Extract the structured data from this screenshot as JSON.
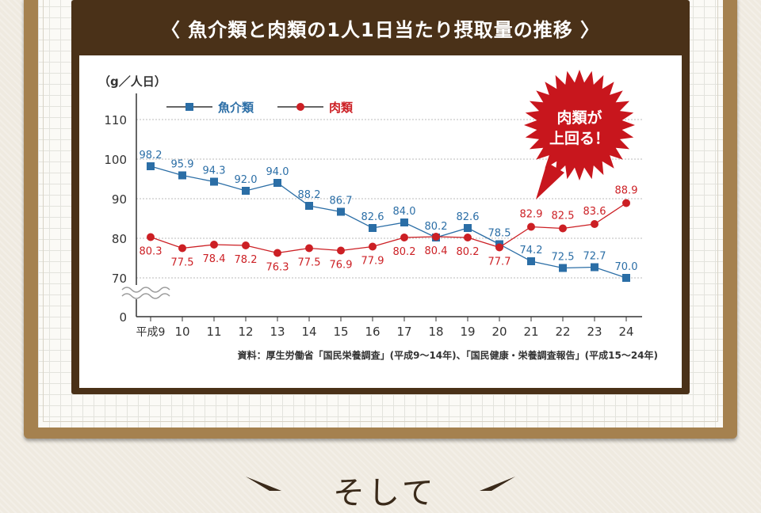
{
  "title": "〈 魚介類と肉類の1人1日当たり摂取量の推移 〉",
  "unit_label": "（g／人日）",
  "callout": {
    "line1": "肉類が",
    "line2": "上回る！"
  },
  "source": "資料：厚生労働省「国民栄養調査」(平成9～14年)、「国民健康・栄養調査報告」(平成15～24年)",
  "bottom_text": "そして",
  "colors": {
    "fish": "#2b6ea6",
    "meat": "#cc1f24",
    "panel": "#4a3118",
    "board": "#a5814f",
    "burst": "#c8161d"
  },
  "chart_data": {
    "type": "line",
    "categories": [
      "平成9",
      "10",
      "11",
      "12",
      "13",
      "14",
      "15",
      "16",
      "17",
      "18",
      "19",
      "20",
      "21",
      "22",
      "23",
      "24"
    ],
    "series": [
      {
        "name": "魚介類",
        "marker": "square",
        "values": [
          98.2,
          95.9,
          94.3,
          92.0,
          94.0,
          88.2,
          86.7,
          82.6,
          84.0,
          80.2,
          82.6,
          78.5,
          74.2,
          72.5,
          72.7,
          70.0
        ],
        "labels": [
          "98.2",
          "95.9",
          "94.3",
          "92.0",
          "94.0",
          "88.2",
          "86.7",
          "82.6",
          "84.0",
          "80.2",
          "82.6",
          "78.5",
          "74.2",
          "72.5",
          "72.7",
          "70.0"
        ]
      },
      {
        "name": "肉類",
        "marker": "circle",
        "values": [
          80.3,
          77.5,
          78.4,
          78.2,
          76.3,
          77.5,
          76.9,
          77.9,
          80.2,
          80.4,
          80.2,
          77.7,
          82.9,
          82.5,
          83.6,
          88.9
        ],
        "labels": [
          "80.3",
          "77.5",
          "78.4",
          "78.2",
          "76.3",
          "77.5",
          "76.9",
          "77.9",
          "80.2",
          "80.4",
          "80.2",
          "77.7",
          "82.9",
          "82.5",
          "83.6",
          "88.9"
        ]
      }
    ],
    "y_ticks": [
      "0",
      "70",
      "80",
      "90",
      "100",
      "110"
    ],
    "ylim": [
      70,
      110
    ],
    "axis_break": true,
    "grid": true,
    "legend": "top-left"
  }
}
